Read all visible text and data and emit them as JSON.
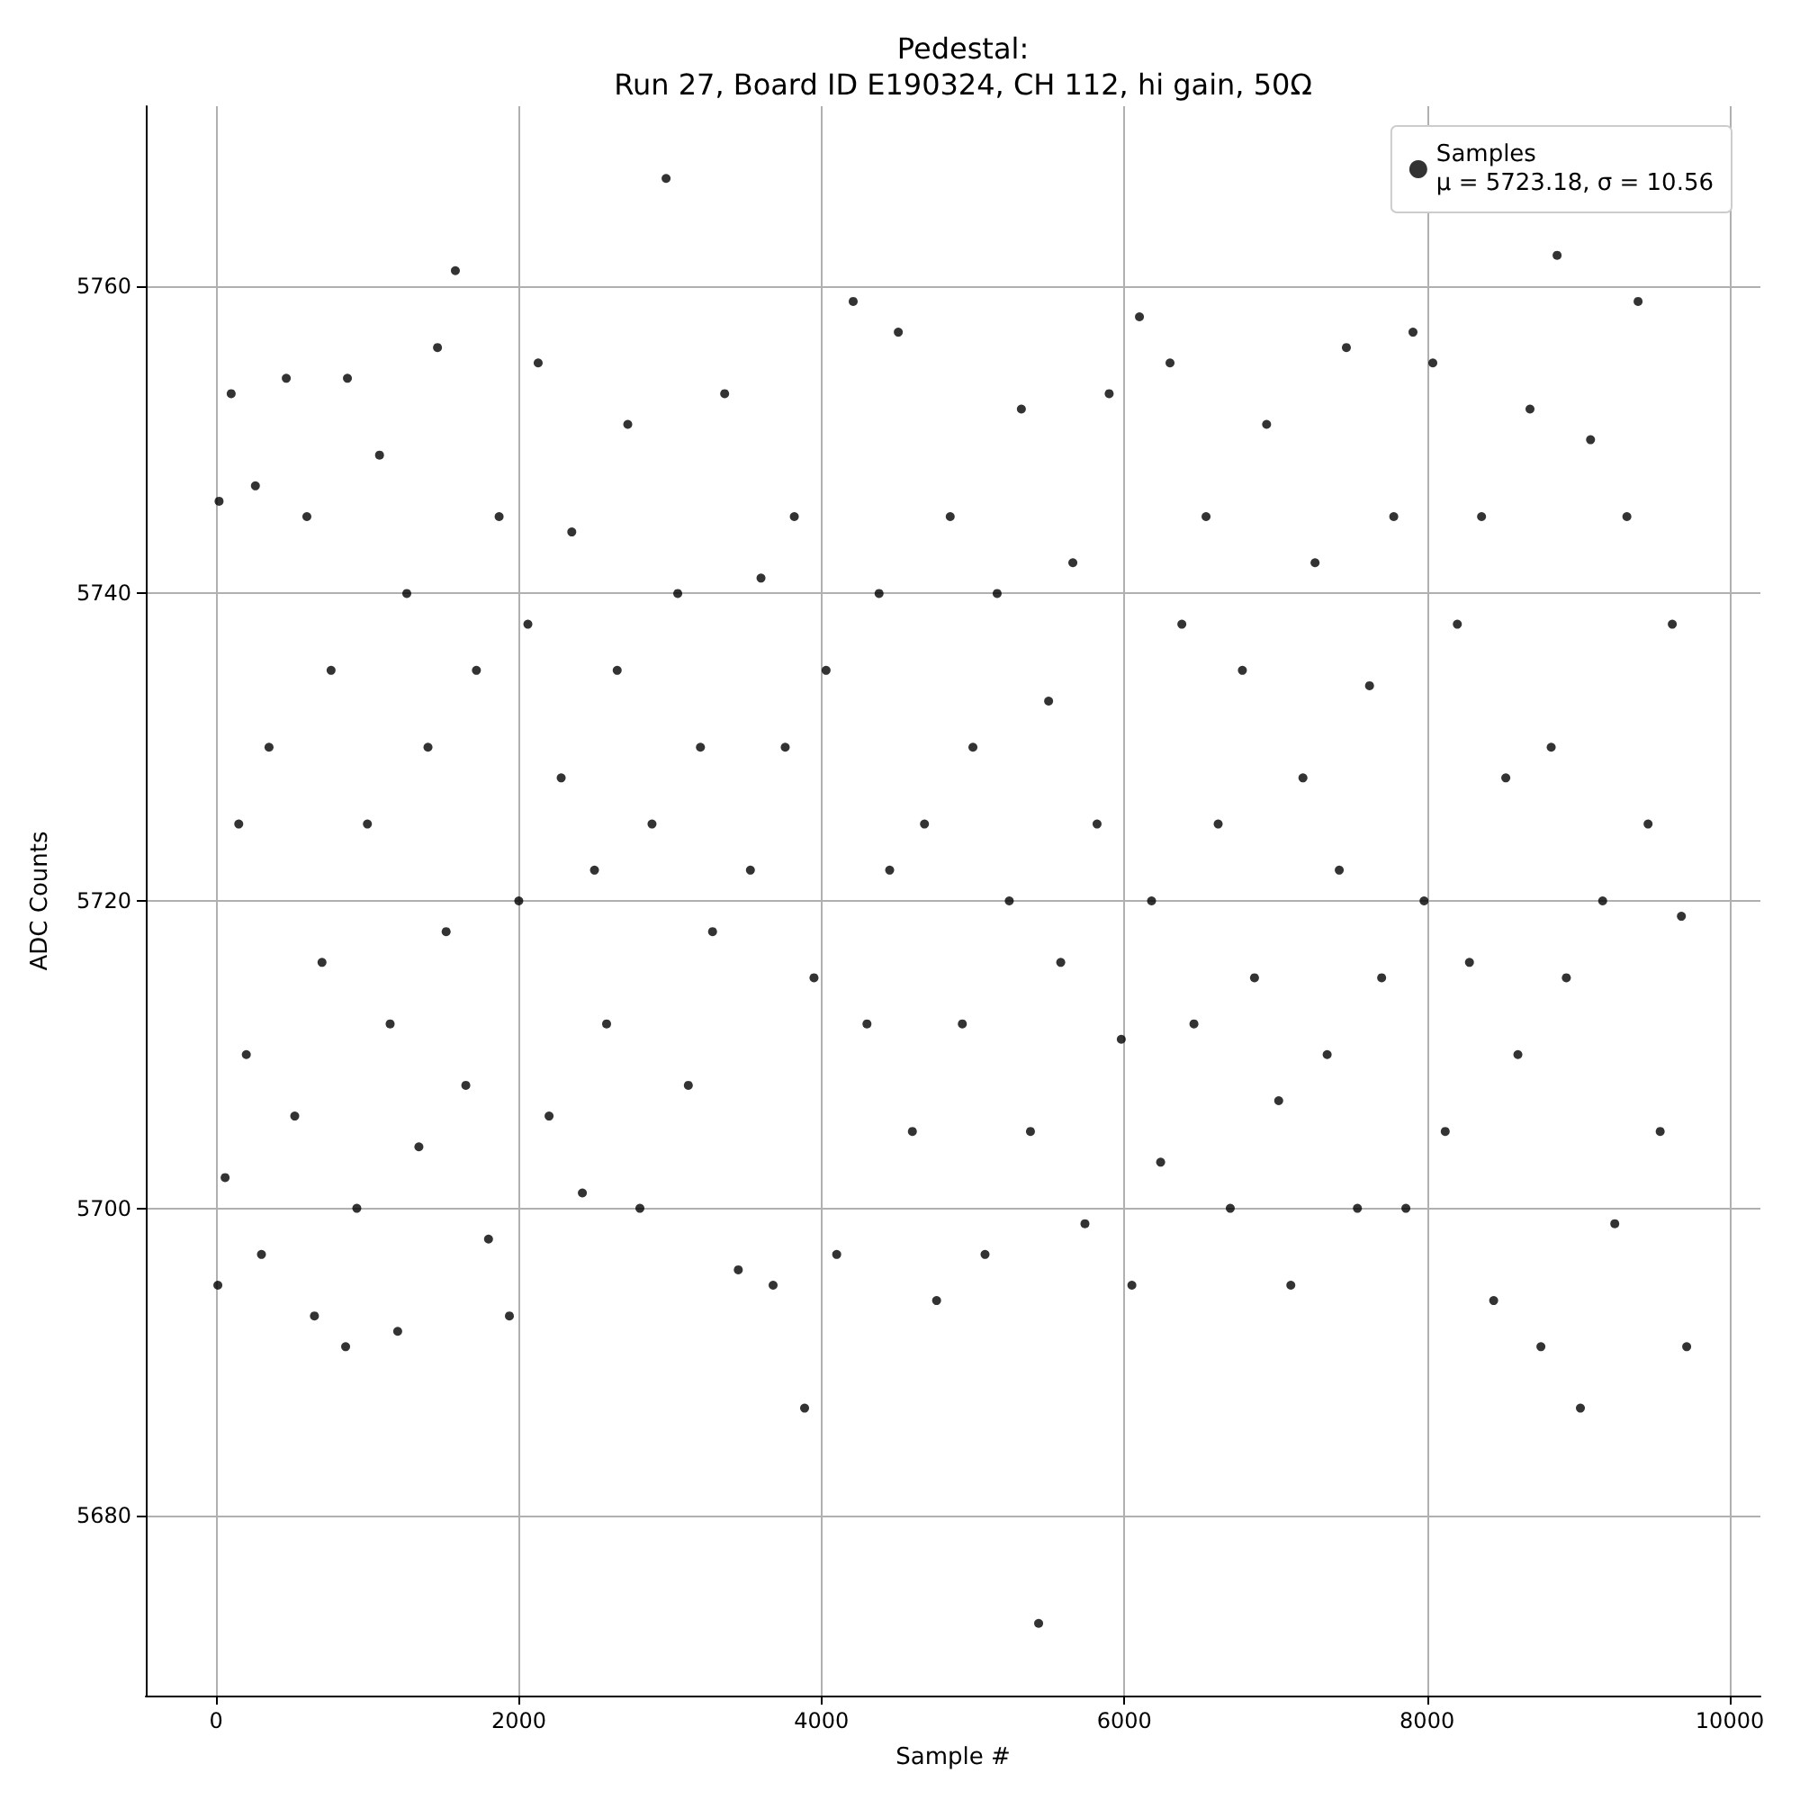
{
  "chart_data": {
    "type": "scatter",
    "title": "Pedestal:\nRun 27, Board ID E190324, CH 112, hi gain, 50Ω",
    "xlabel": "Sample #",
    "ylabel": "ADC Counts",
    "xlim": [
      -464,
      10202
    ],
    "ylim": [
      5668.3,
      5771.7
    ],
    "xticks": [
      0,
      2000,
      4000,
      6000,
      8000,
      10000
    ],
    "yticks": [
      5680,
      5700,
      5720,
      5740,
      5760
    ],
    "grid": true,
    "legend": "top right",
    "marker": "circle",
    "series": [
      {
        "name": "Samples\nμ = 5723.18, σ = 10.56",
        "color": "#000000",
        "x": [
          12,
          20,
          60,
          100,
          150,
          200,
          260,
          300,
          350,
          464,
          520,
          600,
          650,
          700,
          760,
          856,
          868,
          930,
          1000,
          1080,
          1150,
          1200,
          1260,
          1340,
          1400,
          1463,
          1520,
          1581,
          1650,
          1720,
          1800,
          1870,
          1938,
          2000,
          2060,
          2128,
          2200,
          2280,
          2350,
          2420,
          2500,
          2580,
          2650,
          2720,
          2800,
          2880,
          2973,
          3050,
          3120,
          3200,
          3280,
          3360,
          3450,
          3530,
          3600,
          3680,
          3760,
          3820,
          3888,
          3950,
          4030,
          4100,
          4209,
          4300,
          4380,
          4450,
          4507,
          4600,
          4680,
          4760,
          4850,
          4930,
          5000,
          5080,
          5160,
          5240,
          5320,
          5380,
          5434,
          5500,
          5580,
          5660,
          5740,
          5820,
          5900,
          5980,
          6050,
          6100,
          6180,
          6240,
          6302,
          6380,
          6460,
          6540,
          6620,
          6700,
          6780,
          6860,
          6940,
          7020,
          7100,
          7180,
          7260,
          7340,
          7420,
          7467,
          7540,
          7620,
          7700,
          7780,
          7860,
          7907,
          7980,
          8038,
          8120,
          8200,
          8280,
          8360,
          8440,
          8520,
          8600,
          8680,
          8752,
          8820,
          8859,
          8920,
          9013,
          9080,
          9160,
          9240,
          9320,
          9394,
          9460,
          9540,
          9620,
          9680,
          9715
        ],
        "values": [
          5695,
          5746,
          5702,
          5753,
          5725,
          5710,
          5747,
          5697,
          5730,
          5754,
          5706,
          5745,
          5693,
          5716,
          5735,
          5691,
          5754,
          5700,
          5725,
          5749,
          5712,
          5692,
          5740,
          5704,
          5730,
          5756,
          5718,
          5761,
          5708,
          5735,
          5698,
          5745,
          5693,
          5720,
          5738,
          5755,
          5706,
          5728,
          5744,
          5701,
          5722,
          5712,
          5735,
          5751,
          5700,
          5725,
          5767,
          5740,
          5708,
          5730,
          5718,
          5753,
          5696,
          5722,
          5741,
          5695,
          5730,
          5745,
          5687,
          5715,
          5735,
          5697,
          5759,
          5712,
          5740,
          5722,
          5757,
          5705,
          5725,
          5694,
          5745,
          5712,
          5730,
          5697,
          5740,
          5720,
          5752,
          5705,
          5673,
          5733,
          5716,
          5742,
          5699,
          5725,
          5753,
          5711,
          5695,
          5758,
          5720,
          5703,
          5755,
          5738,
          5712,
          5745,
          5725,
          5700,
          5735,
          5715,
          5751,
          5707,
          5695,
          5728,
          5742,
          5710,
          5722,
          5756,
          5700,
          5734,
          5715,
          5745,
          5700,
          5757,
          5720,
          5755,
          5705,
          5738,
          5716,
          5745,
          5694,
          5728,
          5710,
          5752,
          5691,
          5730,
          5762,
          5715,
          5687,
          5750,
          5720,
          5699,
          5745,
          5759,
          5725,
          5705,
          5738,
          5719,
          5691
        ]
      }
    ]
  }
}
